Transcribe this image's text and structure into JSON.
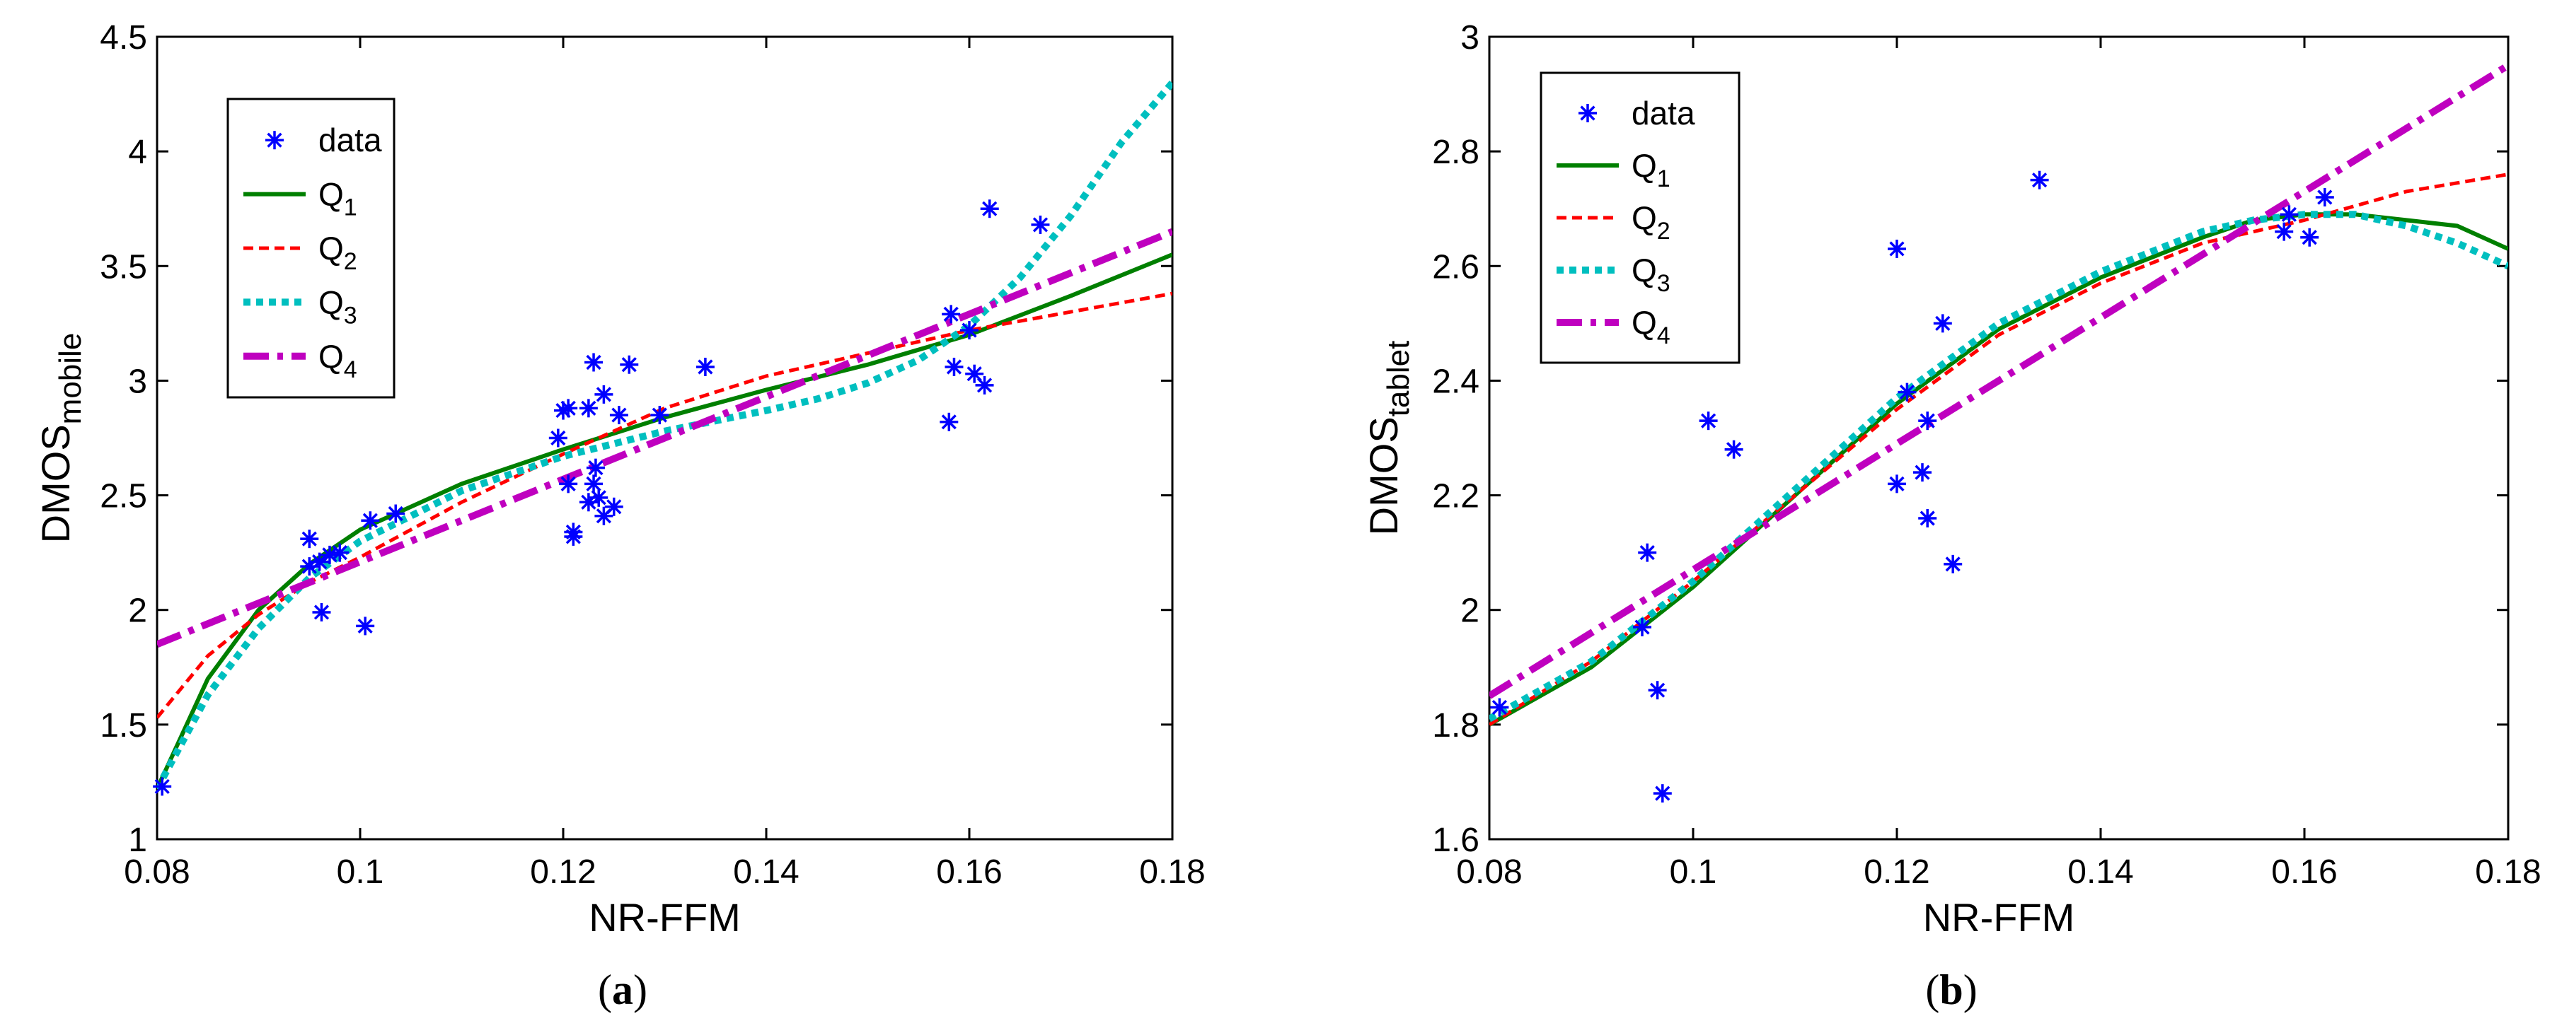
{
  "chart_data": [
    {
      "type": "scatter",
      "panel": "(a)",
      "panel_letter": "a",
      "xlabel": "NR-FFM",
      "ylabel_main": "DMOS",
      "ylabel_sub": "mobile",
      "xlim": [
        0.08,
        0.18
      ],
      "ylim": [
        1,
        4.5
      ],
      "xticks": [
        "0.08",
        "0.1",
        "0.12",
        "0.14",
        "0.16",
        "0.18"
      ],
      "xtick_values": [
        0.08,
        0.1,
        0.12,
        0.14,
        0.16,
        0.18
      ],
      "yticks": [
        "1",
        "1.5",
        "2",
        "2.5",
        "3",
        "3.5",
        "4",
        "4.5"
      ],
      "ytick_values": [
        1,
        1.5,
        2,
        2.5,
        3,
        3.5,
        4,
        4.5
      ],
      "grid": false,
      "legend": {
        "placement": "upper-left",
        "entries": [
          {
            "key": "data",
            "label": "data",
            "sub": ""
          },
          {
            "key": "Q1",
            "label": "Q",
            "sub": "1"
          },
          {
            "key": "Q2",
            "label": "Q",
            "sub": "2"
          },
          {
            "key": "Q3",
            "label": "Q",
            "sub": "3"
          },
          {
            "key": "Q4",
            "label": "Q",
            "sub": "4"
          }
        ]
      },
      "data": [
        [
          0.0805,
          1.23
        ],
        [
          0.095,
          2.31
        ],
        [
          0.095,
          2.19
        ],
        [
          0.096,
          2.21
        ],
        [
          0.0962,
          1.99
        ],
        [
          0.097,
          2.24
        ],
        [
          0.098,
          2.25
        ],
        [
          0.1005,
          1.93
        ],
        [
          0.101,
          2.39
        ],
        [
          0.1035,
          2.42
        ],
        [
          0.1195,
          2.75
        ],
        [
          0.12,
          2.87
        ],
        [
          0.1205,
          2.55
        ],
        [
          0.1205,
          2.88
        ],
        [
          0.121,
          2.32
        ],
        [
          0.121,
          2.34
        ],
        [
          0.1225,
          2.88
        ],
        [
          0.1225,
          2.47
        ],
        [
          0.123,
          2.55
        ],
        [
          0.123,
          3.08
        ],
        [
          0.1232,
          2.62
        ],
        [
          0.1235,
          2.49
        ],
        [
          0.124,
          2.94
        ],
        [
          0.124,
          2.41
        ],
        [
          0.125,
          2.45
        ],
        [
          0.1255,
          2.85
        ],
        [
          0.1265,
          3.07
        ],
        [
          0.1295,
          2.85
        ],
        [
          0.134,
          3.06
        ],
        [
          0.158,
          2.82
        ],
        [
          0.1582,
          3.29
        ],
        [
          0.1585,
          3.06
        ],
        [
          0.16,
          3.22
        ],
        [
          0.1605,
          3.03
        ],
        [
          0.1615,
          2.98
        ],
        [
          0.162,
          3.75
        ],
        [
          0.167,
          3.68
        ]
      ],
      "series": [
        {
          "name": "Q1",
          "x": [
            0.08,
            0.085,
            0.09,
            0.095,
            0.1,
            0.11,
            0.12,
            0.13,
            0.14,
            0.15,
            0.16,
            0.17,
            0.18
          ],
          "y": [
            1.22,
            1.7,
            2.0,
            2.2,
            2.35,
            2.55,
            2.7,
            2.84,
            2.96,
            3.07,
            3.2,
            3.37,
            3.55
          ]
        },
        {
          "name": "Q2",
          "x": [
            0.08,
            0.085,
            0.09,
            0.095,
            0.1,
            0.11,
            0.12,
            0.13,
            0.14,
            0.15,
            0.16,
            0.17,
            0.18
          ],
          "y": [
            1.53,
            1.8,
            1.98,
            2.12,
            2.23,
            2.47,
            2.68,
            2.88,
            3.02,
            3.12,
            3.22,
            3.3,
            3.38
          ]
        },
        {
          "name": "Q3",
          "x": [
            0.08,
            0.085,
            0.09,
            0.095,
            0.1,
            0.11,
            0.12,
            0.13,
            0.14,
            0.145,
            0.15,
            0.155,
            0.16,
            0.165,
            0.17,
            0.175,
            0.18
          ],
          "y": [
            1.22,
            1.63,
            1.92,
            2.14,
            2.3,
            2.52,
            2.67,
            2.78,
            2.87,
            2.92,
            2.99,
            3.09,
            3.24,
            3.45,
            3.72,
            4.04,
            4.3
          ]
        },
        {
          "name": "Q4",
          "x": [
            0.08,
            0.18
          ],
          "y": [
            1.85,
            3.65
          ]
        }
      ]
    },
    {
      "type": "scatter",
      "panel": "(b)",
      "panel_letter": "b",
      "xlabel": "NR-FFM",
      "ylabel_main": "DMOS",
      "ylabel_sub": "tablet",
      "xlim": [
        0.08,
        0.18
      ],
      "ylim": [
        1.6,
        3
      ],
      "xticks": [
        "0.08",
        "0.1",
        "0.12",
        "0.14",
        "0.16",
        "0.18"
      ],
      "xtick_values": [
        0.08,
        0.1,
        0.12,
        0.14,
        0.16,
        0.18
      ],
      "yticks": [
        "1.6",
        "1.8",
        "2",
        "2.2",
        "2.4",
        "2.6",
        "2.8",
        "3"
      ],
      "ytick_values": [
        1.6,
        1.8,
        2,
        2.2,
        2.4,
        2.6,
        2.8,
        3
      ],
      "grid": false,
      "legend": {
        "placement": "upper-left",
        "entries": [
          {
            "key": "data",
            "label": "data",
            "sub": ""
          },
          {
            "key": "Q1",
            "label": "Q",
            "sub": "1"
          },
          {
            "key": "Q2",
            "label": "Q",
            "sub": "2"
          },
          {
            "key": "Q3",
            "label": "Q",
            "sub": "3"
          },
          {
            "key": "Q4",
            "label": "Q",
            "sub": "4"
          }
        ]
      },
      "data": [
        [
          0.081,
          1.83
        ],
        [
          0.095,
          1.97
        ],
        [
          0.0955,
          2.1
        ],
        [
          0.0965,
          1.86
        ],
        [
          0.097,
          1.68
        ],
        [
          0.1015,
          2.33
        ],
        [
          0.104,
          2.28
        ],
        [
          0.12,
          2.22
        ],
        [
          0.12,
          2.63
        ],
        [
          0.121,
          2.38
        ],
        [
          0.1225,
          2.24
        ],
        [
          0.123,
          2.16
        ],
        [
          0.123,
          2.33
        ],
        [
          0.1245,
          2.5
        ],
        [
          0.1255,
          2.08
        ],
        [
          0.134,
          2.75
        ],
        [
          0.158,
          2.66
        ],
        [
          0.1585,
          2.69
        ],
        [
          0.1605,
          2.65
        ],
        [
          0.162,
          2.72
        ]
      ],
      "series": [
        {
          "name": "Q1",
          "x": [
            0.08,
            0.09,
            0.1,
            0.11,
            0.12,
            0.13,
            0.14,
            0.15,
            0.155,
            0.16,
            0.165,
            0.17,
            0.175,
            0.18
          ],
          "y": [
            1.8,
            1.9,
            2.04,
            2.2,
            2.36,
            2.49,
            2.58,
            2.65,
            2.68,
            2.69,
            2.69,
            2.68,
            2.67,
            2.63
          ]
        },
        {
          "name": "Q2",
          "x": [
            0.08,
            0.09,
            0.1,
            0.11,
            0.12,
            0.13,
            0.14,
            0.15,
            0.16,
            0.17,
            0.18
          ],
          "y": [
            1.8,
            1.91,
            2.05,
            2.2,
            2.35,
            2.48,
            2.57,
            2.64,
            2.68,
            2.73,
            2.76
          ]
        },
        {
          "name": "Q3",
          "x": [
            0.08,
            0.09,
            0.1,
            0.11,
            0.12,
            0.13,
            0.14,
            0.15,
            0.155,
            0.16,
            0.165,
            0.17,
            0.175,
            0.18
          ],
          "y": [
            1.81,
            1.91,
            2.05,
            2.21,
            2.37,
            2.5,
            2.59,
            2.66,
            2.68,
            2.69,
            2.69,
            2.67,
            2.64,
            2.6
          ]
        },
        {
          "name": "Q4",
          "x": [
            0.08,
            0.18
          ],
          "y": [
            1.85,
            2.95
          ]
        }
      ]
    }
  ],
  "styles": {
    "data": "#0000ff",
    "Q1": "#007f00",
    "Q2": "#ff0000",
    "Q3": "#00bfbf",
    "Q4": "#bf00bf"
  }
}
